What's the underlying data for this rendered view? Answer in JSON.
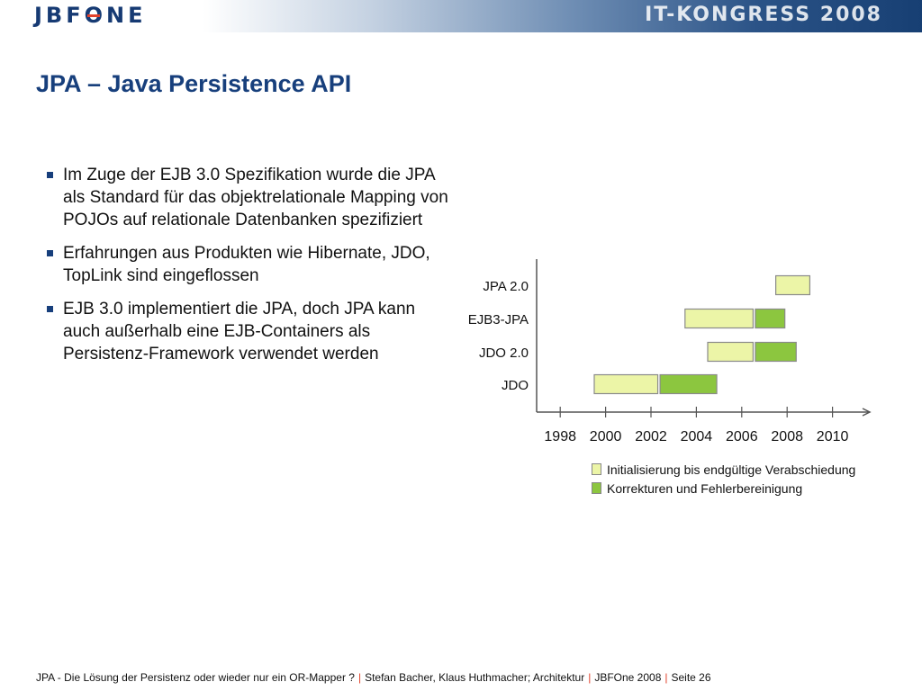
{
  "header": {
    "logo_text": "JBFONE",
    "event_title": "IT-KONGRESS 2008"
  },
  "slide": {
    "title": "JPA – Java Persistence API",
    "bullets": [
      "Im Zuge der EJB 3.0 Spezifikation wurde die JPA als Standard für das objektrelationale Mapping von POJOs auf relationale Datenbanken spezifiziert",
      "Erfahrungen aus Produkten wie Hibernate, JDO, TopLink sind eingeflossen",
      "EJB 3.0 implementiert die JPA, doch JPA kann auch außerhalb eine EJB-Containers als Persistenz-Framework verwendet werden"
    ]
  },
  "chart_data": {
    "type": "gantt",
    "title": "",
    "xlabel": "",
    "ylabel": "",
    "xlim": [
      1997,
      2011.7
    ],
    "x_ticks": [
      1998,
      2000,
      2002,
      2004,
      2006,
      2008,
      2010
    ],
    "categories": [
      "JPA 2.0",
      "EJB3-JPA",
      "JDO 2.0",
      "JDO"
    ],
    "series": [
      {
        "name": "Initialisierung bis endgültige Verabschiedung",
        "color": "#ecf5a7",
        "bars": [
          {
            "category": "JPA 2.0",
            "start": 2007.5,
            "end": 2009.0
          },
          {
            "category": "EJB3-JPA",
            "start": 2003.5,
            "end": 2006.5
          },
          {
            "category": "JDO 2.0",
            "start": 2004.5,
            "end": 2006.5
          },
          {
            "category": "JDO",
            "start": 1999.5,
            "end": 2002.3
          }
        ]
      },
      {
        "name": "Korrekturen und Fehlerbereinigung",
        "color": "#8cc63f",
        "bars": [
          {
            "category": "EJB3-JPA",
            "start": 2006.6,
            "end": 2007.9
          },
          {
            "category": "JDO 2.0",
            "start": 2006.6,
            "end": 2008.4
          },
          {
            "category": "JDO",
            "start": 2002.4,
            "end": 2004.9
          }
        ]
      }
    ],
    "grid": false,
    "legend_position": "bottom"
  },
  "footer": {
    "topic": "JPA - Die Lösung der Persistenz oder wieder nur ein OR-Mapper ?",
    "authors": "Stefan Bacher, Klaus Huthmacher; Architektur",
    "event": "JBFOne 2008",
    "page": "Seite 26",
    "separator": "|"
  }
}
